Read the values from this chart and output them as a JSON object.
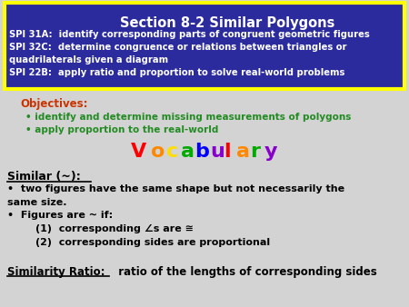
{
  "bg_color": "#d3d3d3",
  "header_bg": "#2b2b9e",
  "header_border": "#ffff00",
  "header_title": "Section 8-2 Similar Polygons",
  "header_title_color": "#ffffff",
  "header_lines": [
    "SPI 31A:  identify corresponding parts of congruent geometric figures",
    "SPI 32C:  determine congruence or relations between triangles or",
    "quadrilaterals given a diagram",
    "SPI 22B:  apply ratio and proportion to solve real-world problems"
  ],
  "header_line_color": "#ffffff",
  "objectives_label": "Objectives:",
  "objectives_label_color": "#cc3300",
  "objectives_bullets": [
    "identify and determine missing measurements of polygons",
    "apply proportion to the real-world"
  ],
  "objectives_bullet_color": "#228B22",
  "vocab_letters": [
    "V",
    "o",
    "c",
    "a",
    "b",
    "u",
    "l",
    "a",
    "r",
    "y"
  ],
  "vocab_colors": [
    "#ff0000",
    "#ff8800",
    "#ffdd00",
    "#00aa00",
    "#0000ff",
    "#8800cc",
    "#ff0000",
    "#ff8800",
    "#00aa00",
    "#8800cc"
  ],
  "similar_header": "Similar (~):",
  "similar_header_color": "#000000",
  "body_lines": [
    "•  two figures have the same shape but not necessarily the",
    "same size.",
    "•  Figures are ~ if:",
    "        (1)  corresponding ∠s are ≅",
    "        (2)  corresponding sides are proportional"
  ],
  "similarity_label": "Similarity Ratio:",
  "similarity_text": "  ratio of the lengths of corresponding sides",
  "similarity_color": "#000000"
}
